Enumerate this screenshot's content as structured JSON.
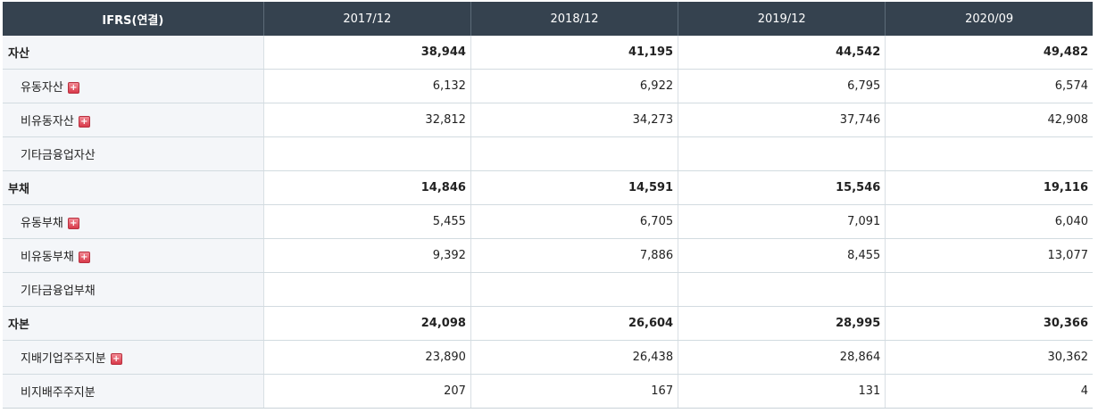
{
  "header": {
    "label": "IFRS(연결)",
    "periods": [
      "2017/12",
      "2018/12",
      "2019/12",
      "2020/09"
    ]
  },
  "expand_icon_glyph": "+",
  "rows": [
    {
      "label": "자산",
      "level": "major",
      "expandable": false,
      "values": [
        "38,944",
        "41,195",
        "44,542",
        "49,482"
      ]
    },
    {
      "label": "유동자산",
      "level": "sub",
      "expandable": true,
      "values": [
        "6,132",
        "6,922",
        "6,795",
        "6,574"
      ]
    },
    {
      "label": "비유동자산",
      "level": "sub",
      "expandable": true,
      "values": [
        "32,812",
        "34,273",
        "37,746",
        "42,908"
      ]
    },
    {
      "label": "기타금융업자산",
      "level": "sub",
      "expandable": false,
      "values": [
        "",
        "",
        "",
        ""
      ]
    },
    {
      "label": "부채",
      "level": "major",
      "expandable": false,
      "values": [
        "14,846",
        "14,591",
        "15,546",
        "19,116"
      ]
    },
    {
      "label": "유동부채",
      "level": "sub",
      "expandable": true,
      "values": [
        "5,455",
        "6,705",
        "7,091",
        "6,040"
      ]
    },
    {
      "label": "비유동부채",
      "level": "sub",
      "expandable": true,
      "values": [
        "9,392",
        "7,886",
        "8,455",
        "13,077"
      ]
    },
    {
      "label": "기타금융업부채",
      "level": "sub",
      "expandable": false,
      "values": [
        "",
        "",
        "",
        ""
      ]
    },
    {
      "label": "자본",
      "level": "major",
      "expandable": false,
      "values": [
        "24,098",
        "26,604",
        "28,995",
        "30,366"
      ]
    },
    {
      "label": "지배기업주주지분",
      "level": "sub",
      "expandable": true,
      "values": [
        "23,890",
        "26,438",
        "28,864",
        "30,362"
      ]
    },
    {
      "label": "비지배주주지분",
      "level": "sub",
      "expandable": false,
      "values": [
        "207",
        "167",
        "131",
        "4"
      ]
    }
  ],
  "colors": {
    "header_bg": "#35424f",
    "label_bg": "#f4f6f9",
    "expand_icon": "#d8394a"
  }
}
